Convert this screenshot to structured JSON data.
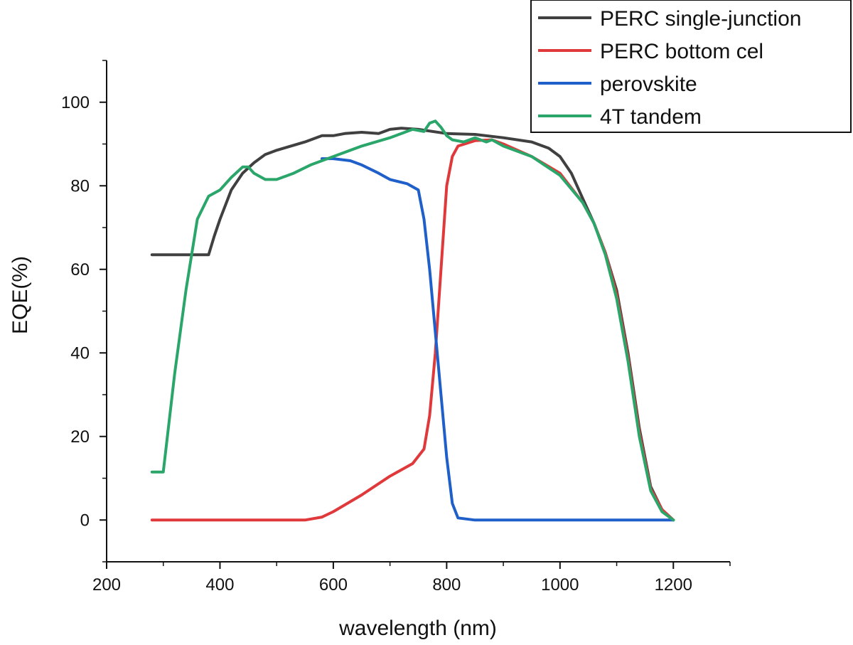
{
  "chart_data": {
    "type": "line",
    "xlabel": "wavelength (nm)",
    "ylabel": "EQE(%)",
    "xlim": [
      200,
      1300
    ],
    "ylim": [
      -10,
      110
    ],
    "x_ticks": [
      200,
      400,
      600,
      800,
      1000,
      1200
    ],
    "y_ticks": [
      0,
      20,
      40,
      60,
      80,
      100
    ],
    "x_tick_labels": [
      "200",
      "400",
      "600",
      "800",
      "1000",
      "1200"
    ],
    "y_tick_labels": [
      "0",
      "20",
      "40",
      "60",
      "80",
      "100"
    ],
    "legend_position": "top-right",
    "series": [
      {
        "name": "PERC single-junction",
        "color": "#404040",
        "points": [
          [
            280,
            63.5
          ],
          [
            380,
            63.5
          ],
          [
            390,
            68
          ],
          [
            400,
            72
          ],
          [
            420,
            79
          ],
          [
            440,
            83
          ],
          [
            460,
            85.5
          ],
          [
            480,
            87.5
          ],
          [
            500,
            88.5
          ],
          [
            550,
            90.5
          ],
          [
            580,
            92
          ],
          [
            600,
            92
          ],
          [
            620,
            92.5
          ],
          [
            650,
            92.8
          ],
          [
            680,
            92.5
          ],
          [
            700,
            93.5
          ],
          [
            720,
            93.8
          ],
          [
            750,
            93.5
          ],
          [
            800,
            92.5
          ],
          [
            850,
            92.3
          ],
          [
            900,
            91.5
          ],
          [
            950,
            90.5
          ],
          [
            980,
            89
          ],
          [
            1000,
            87
          ],
          [
            1020,
            83
          ],
          [
            1040,
            77
          ],
          [
            1060,
            71
          ],
          [
            1080,
            64
          ],
          [
            1100,
            55
          ],
          [
            1120,
            40
          ],
          [
            1140,
            22
          ],
          [
            1160,
            8
          ],
          [
            1180,
            2.5
          ],
          [
            1200,
            0
          ]
        ]
      },
      {
        "name": "PERC bottom cel",
        "color": "#e0393b",
        "points": [
          [
            280,
            0
          ],
          [
            400,
            0
          ],
          [
            500,
            0
          ],
          [
            550,
            0
          ],
          [
            580,
            0.7
          ],
          [
            600,
            2
          ],
          [
            650,
            6
          ],
          [
            700,
            10.5
          ],
          [
            740,
            13.5
          ],
          [
            760,
            17
          ],
          [
            770,
            25
          ],
          [
            780,
            40
          ],
          [
            790,
            60
          ],
          [
            800,
            80
          ],
          [
            810,
            87
          ],
          [
            820,
            89.5
          ],
          [
            850,
            90.8
          ],
          [
            880,
            91
          ],
          [
            900,
            90
          ],
          [
            950,
            87
          ],
          [
            1000,
            83
          ],
          [
            1040,
            76
          ],
          [
            1060,
            71
          ],
          [
            1080,
            64
          ],
          [
            1100,
            54
          ],
          [
            1120,
            39
          ],
          [
            1140,
            21
          ],
          [
            1160,
            7.5
          ],
          [
            1180,
            2.5
          ],
          [
            1200,
            0
          ]
        ]
      },
      {
        "name": "perovskite",
        "color": "#1f5fc9",
        "points": [
          [
            580,
            86.5
          ],
          [
            600,
            86.5
          ],
          [
            630,
            86
          ],
          [
            650,
            85
          ],
          [
            680,
            83
          ],
          [
            700,
            81.5
          ],
          [
            730,
            80.5
          ],
          [
            750,
            79
          ],
          [
            760,
            72
          ],
          [
            770,
            60
          ],
          [
            780,
            45
          ],
          [
            790,
            30
          ],
          [
            800,
            15
          ],
          [
            810,
            4
          ],
          [
            820,
            0.5
          ],
          [
            850,
            0
          ],
          [
            900,
            0
          ],
          [
            1000,
            0
          ],
          [
            1100,
            0
          ],
          [
            1200,
            0
          ]
        ]
      },
      {
        "name": "4T tandem",
        "color": "#2aa66a",
        "points": [
          [
            280,
            11.5
          ],
          [
            300,
            11.5
          ],
          [
            320,
            35
          ],
          [
            340,
            55
          ],
          [
            360,
            72
          ],
          [
            380,
            77.5
          ],
          [
            400,
            79
          ],
          [
            420,
            82
          ],
          [
            440,
            84.5
          ],
          [
            450,
            84.5
          ],
          [
            460,
            83
          ],
          [
            480,
            81.5
          ],
          [
            500,
            81.5
          ],
          [
            530,
            83
          ],
          [
            560,
            85
          ],
          [
            600,
            87
          ],
          [
            650,
            89.5
          ],
          [
            700,
            91.5
          ],
          [
            740,
            93.5
          ],
          [
            760,
            93
          ],
          [
            770,
            95
          ],
          [
            780,
            95.5
          ],
          [
            790,
            94
          ],
          [
            800,
            92
          ],
          [
            810,
            91
          ],
          [
            830,
            90.5
          ],
          [
            850,
            91.5
          ],
          [
            870,
            90.5
          ],
          [
            880,
            91
          ],
          [
            900,
            89.5
          ],
          [
            950,
            87
          ],
          [
            1000,
            82.5
          ],
          [
            1040,
            76
          ],
          [
            1060,
            71
          ],
          [
            1080,
            63.5
          ],
          [
            1100,
            53
          ],
          [
            1120,
            38
          ],
          [
            1140,
            20
          ],
          [
            1160,
            7
          ],
          [
            1180,
            2
          ],
          [
            1200,
            0
          ]
        ]
      }
    ]
  }
}
